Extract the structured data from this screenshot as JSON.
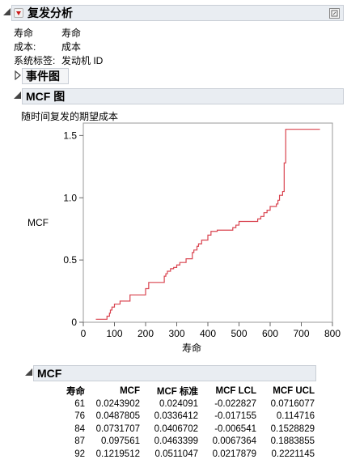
{
  "report": {
    "title": "复发分析",
    "fields": [
      {
        "label": "寿命",
        "value": "寿命"
      },
      {
        "label": "成本:",
        "value": "成本"
      },
      {
        "label": "系统标签:",
        "value": "发动机 ID"
      }
    ]
  },
  "event_section": {
    "title": "事件图"
  },
  "mcf_plot_section": {
    "title": "MCF 图",
    "subtitle": "随时间复发的期望成本"
  },
  "mcf_table_section": {
    "title": "MCF",
    "columns": [
      "寿命",
      "MCF",
      "MCF 标准",
      "MCF LCL",
      "MCF UCL"
    ],
    "rows": [
      [
        "61",
        "0.0243902",
        "0.024091",
        "-0.022827",
        "0.0716077"
      ],
      [
        "76",
        "0.0487805",
        "0.0336412",
        "-0.017155",
        "0.114716"
      ],
      [
        "84",
        "0.0731707",
        "0.0406702",
        "-0.006541",
        "0.1528829"
      ],
      [
        "87",
        "0.097561",
        "0.0463399",
        "0.0067364",
        "0.1883855"
      ],
      [
        "92",
        "0.1219512",
        "0.0511047",
        "0.0217879",
        "0.2221145"
      ]
    ]
  },
  "chart_data": {
    "type": "line",
    "title": "",
    "xlabel": "寿命",
    "ylabel": "MCF",
    "xlim": [
      0,
      800
    ],
    "ylim": [
      0,
      1.6
    ],
    "xticks": [
      0,
      100,
      200,
      300,
      400,
      500,
      600,
      700,
      800
    ],
    "yticks": [
      0,
      0.5,
      1.0,
      1.5
    ],
    "ytick_labels": [
      "0",
      "0.5",
      "1.0",
      "1.5"
    ],
    "color": "#d9434f",
    "series": [
      {
        "step": true,
        "x": [
          61,
          76,
          84,
          87,
          92,
          100,
          118,
          150,
          200,
          210,
          260,
          265,
          270,
          280,
          290,
          300,
          310,
          330,
          350,
          355,
          365,
          370,
          380,
          400,
          410,
          430,
          480,
          490,
          500,
          560,
          570,
          580,
          590,
          600,
          620,
          625,
          630,
          640,
          645,
          650,
          760
        ],
        "y": [
          0.024,
          0.049,
          0.073,
          0.098,
          0.122,
          0.146,
          0.17,
          0.22,
          0.27,
          0.32,
          0.37,
          0.39,
          0.41,
          0.43,
          0.44,
          0.46,
          0.48,
          0.51,
          0.56,
          0.58,
          0.61,
          0.63,
          0.66,
          0.7,
          0.73,
          0.74,
          0.76,
          0.78,
          0.81,
          0.83,
          0.85,
          0.88,
          0.9,
          0.93,
          0.95,
          0.98,
          1.02,
          1.05,
          1.28,
          1.55,
          1.55
        ]
      }
    ]
  }
}
